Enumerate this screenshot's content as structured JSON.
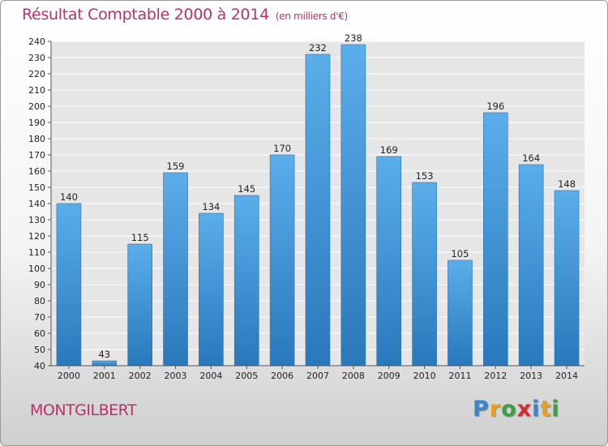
{
  "chart_data": {
    "type": "bar",
    "title": "Résultat Comptable 2000 à 2014",
    "subtitle": "(en milliers d'€)",
    "xlabel": "",
    "ylabel": "",
    "ylim": [
      40,
      240
    ],
    "ytick_step": 10,
    "grid": true,
    "categories": [
      "2000",
      "2001",
      "2002",
      "2003",
      "2004",
      "2005",
      "2006",
      "2007",
      "2008",
      "2009",
      "2010",
      "2011",
      "2012",
      "2013",
      "2014"
    ],
    "values": [
      140,
      43,
      115,
      159,
      134,
      145,
      170,
      232,
      238,
      169,
      153,
      105,
      196,
      164,
      148
    ]
  },
  "footer": {
    "commune": "MONTGILBERT",
    "logo_letters": [
      "P",
      "r",
      "o",
      "x",
      "i",
      "t",
      "i"
    ],
    "logo_colors": [
      "#3a86c8",
      "#e8a020",
      "#3aa040",
      "#d03030",
      "#3a86c8",
      "#e8a020",
      "#3aa040"
    ]
  },
  "colors": {
    "title": "#b8326a",
    "bar_top": "#5aaeea",
    "bar_bottom": "#2a78bc",
    "plot_bg": "#e6e6e6",
    "grid": "#ffffff"
  }
}
